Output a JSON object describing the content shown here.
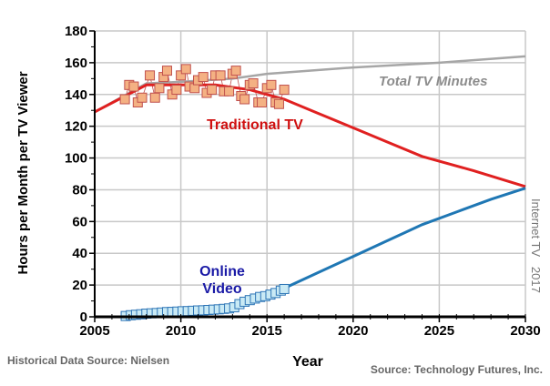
{
  "chart_data": {
    "type": "line",
    "xlabel": "Year",
    "ylabel": "Hours per Month per TV Viewer",
    "xlim": [
      2005,
      2030
    ],
    "ylim": [
      0,
      180
    ],
    "xticks": [
      2005,
      2010,
      2015,
      2020,
      2025,
      2030
    ],
    "yticks": [
      0,
      20,
      40,
      60,
      80,
      100,
      120,
      140,
      160,
      180
    ],
    "grid": true,
    "series": [
      {
        "name": "Total TV Minutes",
        "color": "#a6a6a6",
        "x": [
          2005,
          2008,
          2010,
          2013,
          2015,
          2020,
          2025,
          2030
        ],
        "y": [
          129,
          147,
          148,
          150,
          153,
          157,
          160,
          164
        ]
      },
      {
        "name": "Traditional TV",
        "color": "#e02020",
        "x": [
          2005,
          2008,
          2012,
          2014,
          2015,
          2016,
          2018,
          2020,
          2022,
          2024,
          2027,
          2030
        ],
        "y": [
          129,
          146,
          146,
          143,
          140,
          137,
          128,
          119,
          110,
          101,
          92,
          82
        ]
      },
      {
        "name": "Online Video",
        "color": "#1f77b4",
        "x": [
          2016,
          2018,
          2020,
          2022,
          2024,
          2026,
          2028,
          2030
        ],
        "y": [
          18,
          28,
          38,
          48,
          58,
          66,
          74,
          81
        ]
      }
    ],
    "historical_traditional": {
      "color": "#f4b183",
      "x": [
        2006.75,
        2007.0,
        2007.27,
        2007.5,
        2007.75,
        2008.2,
        2008.5,
        2008.75,
        2009.0,
        2009.2,
        2009.5,
        2009.75,
        2010.0,
        2010.3,
        2010.5,
        2010.8,
        2011.0,
        2011.3,
        2011.5,
        2011.8,
        2012.0,
        2012.3,
        2012.5,
        2012.8,
        2013.0,
        2013.2,
        2013.5,
        2013.7,
        2014.0,
        2014.2,
        2014.5,
        2014.7,
        2015.0,
        2015.25,
        2015.5,
        2015.7,
        2016.0
      ],
      "y": [
        137,
        146,
        145,
        135,
        138,
        152,
        138,
        144,
        151,
        155,
        140,
        143,
        152,
        156,
        145,
        144,
        149,
        151,
        141,
        143,
        152,
        152,
        142,
        142,
        153,
        155,
        139,
        137,
        146,
        147,
        135,
        135,
        144,
        146,
        135,
        134,
        143
      ]
    },
    "historical_online": {
      "color": "#c9eaf5",
      "x": [
        2006.8,
        2007.1,
        2007.4,
        2007.7,
        2008.0,
        2008.3,
        2008.6,
        2008.9,
        2009.2,
        2009.5,
        2009.8,
        2010.1,
        2010.4,
        2010.7,
        2011.0,
        2011.3,
        2011.6,
        2011.9,
        2012.2,
        2012.5,
        2012.8,
        2013.1,
        2013.4,
        2013.7,
        2014.0,
        2014.3,
        2014.6,
        2014.9,
        2015.2,
        2015.5,
        2015.8,
        2016.0
      ],
      "y": [
        0.5,
        1,
        1.3,
        1.6,
        2,
        2.2,
        2.4,
        2.7,
        3,
        3.1,
        3.3,
        3.5,
        3.6,
        3.8,
        4,
        4.1,
        4.3,
        4.5,
        4.7,
        5,
        5.3,
        6,
        8,
        9.5,
        10.5,
        11.5,
        12.5,
        13,
        14,
        15,
        16.5,
        17.5
      ]
    },
    "annotations": {
      "total": "Total TV Minutes",
      "traditional": "Traditional TV",
      "online1": "Online",
      "online2": "Video",
      "internet": "Internet TV   2017"
    }
  },
  "footer": {
    "left": "Historical Data Source: Nielsen",
    "right": "Source: Technology Futures, Inc."
  }
}
